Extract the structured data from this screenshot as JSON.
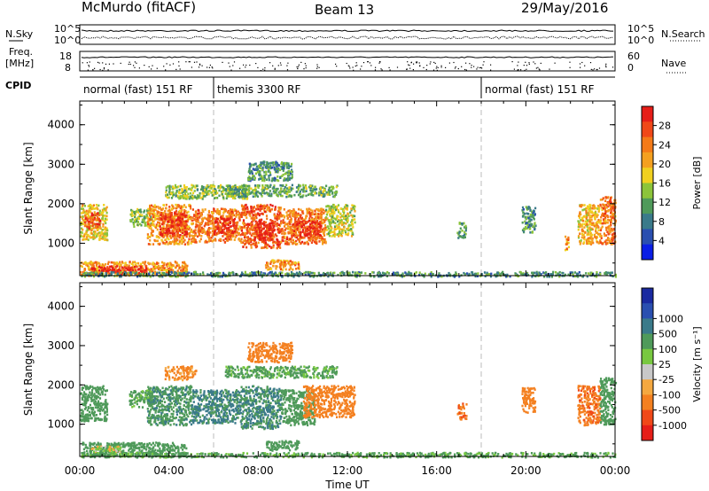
{
  "header": {
    "station": "McMurdo (fitACF)",
    "beam": "Beam 13",
    "date": "29/May/2016"
  },
  "top_panels": {
    "nsky_label": "N.Sky",
    "nsearch_label": "N.Search",
    "freq_label_1": "Freq.",
    "freq_label_2": "[MHz]",
    "nave_label": "Nave",
    "cpid_label": "CPID",
    "noise_left_ticks": [
      "10^5",
      "10^0"
    ],
    "noise_right_ticks": [
      "10^5",
      "10^0"
    ],
    "freq_left_ticks": [
      "18",
      "8"
    ],
    "freq_right_ticks": [
      "60",
      "0"
    ]
  },
  "cpid_segments": [
    {
      "label": "normal (fast) 151 RF",
      "start_h": 0,
      "end_h": 6
    },
    {
      "label": "themis 3300 RF",
      "start_h": 6,
      "end_h": 18
    },
    {
      "label": "normal (fast) 151 RF",
      "start_h": 18,
      "end_h": 24
    }
  ],
  "colors": {
    "power_scale": [
      "#0a1ee6",
      "#2a4fb0",
      "#3a7a8a",
      "#4f9a5a",
      "#8cc43a",
      "#f0d020",
      "#f4a020",
      "#f47a18",
      "#f04818",
      "#e61e18"
    ],
    "velocity_scale": [
      "#e61e18",
      "#f04818",
      "#f48020",
      "#f4a840",
      "#c8c8c8",
      "#78c840",
      "#4f9a5a",
      "#3a7a8a",
      "#2a4fb0",
      "#1a2aa0"
    ]
  },
  "x_axis": {
    "label": "Time UT",
    "ticks": [
      "00:00",
      "04:00",
      "08:00",
      "12:00",
      "16:00",
      "20:00",
      "00:00"
    ]
  },
  "chart_data": [
    {
      "type": "heatmap",
      "panel": "power",
      "ylabel": "Slant Range [km]",
      "ylim": [
        180,
        4600
      ],
      "yticks": [
        "1000",
        "2000",
        "3000",
        "4000"
      ],
      "xlim_hours": [
        0,
        24
      ],
      "colorbar": {
        "label": "Power [dB]",
        "range": [
          0,
          32
        ],
        "ticks": [
          "4",
          "8",
          "12",
          "16",
          "20",
          "24",
          "28"
        ]
      },
      "echo_regions": [
        {
          "t0": 0.0,
          "t1": 1.2,
          "r0": 1100,
          "r1": 2000,
          "v": 18
        },
        {
          "t0": 0.2,
          "t1": 0.9,
          "r0": 1400,
          "r1": 1800,
          "v": 26
        },
        {
          "t0": 0.0,
          "t1": 4.8,
          "r0": 200,
          "r1": 560,
          "v": 22
        },
        {
          "t0": 0.5,
          "t1": 3.0,
          "r0": 250,
          "r1": 450,
          "v": 30
        },
        {
          "t0": 2.2,
          "t1": 3.2,
          "r0": 1450,
          "r1": 1900,
          "v": 14
        },
        {
          "t0": 3.0,
          "t1": 5.0,
          "r0": 1000,
          "r1": 2000,
          "v": 22
        },
        {
          "t0": 3.5,
          "t1": 4.8,
          "r0": 1200,
          "r1": 1800,
          "v": 28
        },
        {
          "t0": 5.0,
          "t1": 7.2,
          "r0": 1050,
          "r1": 1900,
          "v": 24
        },
        {
          "t0": 6.0,
          "t1": 7.0,
          "r0": 1250,
          "r1": 1650,
          "v": 30
        },
        {
          "t0": 7.2,
          "t1": 9.0,
          "r0": 900,
          "r1": 2000,
          "v": 26
        },
        {
          "t0": 7.8,
          "t1": 8.6,
          "r0": 1100,
          "r1": 1600,
          "v": 30
        },
        {
          "t0": 9.0,
          "t1": 11.0,
          "r0": 1000,
          "r1": 1900,
          "v": 24
        },
        {
          "t0": 9.5,
          "t1": 10.8,
          "r0": 1150,
          "r1": 1600,
          "v": 29
        },
        {
          "t0": 11.0,
          "t1": 12.3,
          "r0": 1200,
          "r1": 2000,
          "v": 16
        },
        {
          "t0": 3.8,
          "t1": 7.5,
          "r0": 2150,
          "r1": 2500,
          "v": 14
        },
        {
          "t0": 6.5,
          "t1": 11.5,
          "r0": 2200,
          "r1": 2500,
          "v": 12
        },
        {
          "t0": 7.5,
          "t1": 9.5,
          "r0": 2600,
          "r1": 3100,
          "v": 10
        },
        {
          "t0": 8.3,
          "t1": 9.8,
          "r0": 350,
          "r1": 600,
          "v": 22
        },
        {
          "t0": 16.9,
          "t1": 17.3,
          "r0": 1150,
          "r1": 1550,
          "v": 12
        },
        {
          "t0": 19.8,
          "t1": 20.4,
          "r0": 1300,
          "r1": 1950,
          "v": 10
        },
        {
          "t0": 21.7,
          "t1": 21.9,
          "r0": 850,
          "r1": 1200,
          "v": 22
        },
        {
          "t0": 22.3,
          "t1": 23.3,
          "r0": 1000,
          "r1": 2000,
          "v": 20
        },
        {
          "t0": 23.3,
          "t1": 24.0,
          "r0": 1000,
          "r1": 2200,
          "v": 24
        },
        {
          "t0": 0.0,
          "t1": 24.0,
          "r0": 180,
          "r1": 300,
          "v": 10
        }
      ]
    },
    {
      "type": "heatmap",
      "panel": "velocity",
      "ylabel": "Slant Range [km]",
      "ylim": [
        180,
        4600
      ],
      "yticks": [
        "1000",
        "2000",
        "3000",
        "4000"
      ],
      "xlim_hours": [
        0,
        24
      ],
      "colorbar": {
        "label": "Velocity [m s⁻¹]",
        "ticks": [
          "-1000",
          "-500",
          "-100",
          "-25",
          "25",
          "100",
          "500",
          "1000"
        ]
      },
      "echo_regions": [
        {
          "t0": 0.0,
          "t1": 1.2,
          "r0": 1100,
          "r1": 2000,
          "v": 300
        },
        {
          "t0": 0.0,
          "t1": 4.8,
          "r0": 200,
          "r1": 560,
          "v": 200
        },
        {
          "t0": 0.5,
          "t1": 1.8,
          "r0": 280,
          "r1": 460,
          "v": 0
        },
        {
          "t0": 2.2,
          "t1": 3.2,
          "r0": 1450,
          "r1": 1900,
          "v": 150
        },
        {
          "t0": 3.0,
          "t1": 5.0,
          "r0": 1000,
          "r1": 2000,
          "v": 400
        },
        {
          "t0": 5.0,
          "t1": 7.2,
          "r0": 1050,
          "r1": 1900,
          "v": 600
        },
        {
          "t0": 7.2,
          "t1": 9.0,
          "r0": 900,
          "r1": 2000,
          "v": 500
        },
        {
          "t0": 9.0,
          "t1": 10.5,
          "r0": 1000,
          "r1": 1900,
          "v": 300
        },
        {
          "t0": 10.0,
          "t1": 12.3,
          "r0": 1200,
          "r1": 2000,
          "v": -200
        },
        {
          "t0": 3.8,
          "t1": 5.2,
          "r0": 2150,
          "r1": 2500,
          "v": -150
        },
        {
          "t0": 6.5,
          "t1": 11.5,
          "r0": 2200,
          "r1": 2500,
          "v": 150
        },
        {
          "t0": 7.5,
          "t1": 9.5,
          "r0": 2600,
          "r1": 3100,
          "v": -300
        },
        {
          "t0": 8.3,
          "t1": 9.8,
          "r0": 350,
          "r1": 600,
          "v": 200
        },
        {
          "t0": 16.9,
          "t1": 17.3,
          "r0": 1150,
          "r1": 1550,
          "v": -400
        },
        {
          "t0": 19.8,
          "t1": 20.4,
          "r0": 1300,
          "r1": 1950,
          "v": -300
        },
        {
          "t0": 22.3,
          "t1": 23.3,
          "r0": 1000,
          "r1": 2000,
          "v": -400
        },
        {
          "t0": 23.3,
          "t1": 24.0,
          "r0": 1000,
          "r1": 2200,
          "v": 200
        },
        {
          "t0": 0.0,
          "t1": 24.0,
          "r0": 180,
          "r1": 300,
          "v": 150
        }
      ]
    }
  ]
}
